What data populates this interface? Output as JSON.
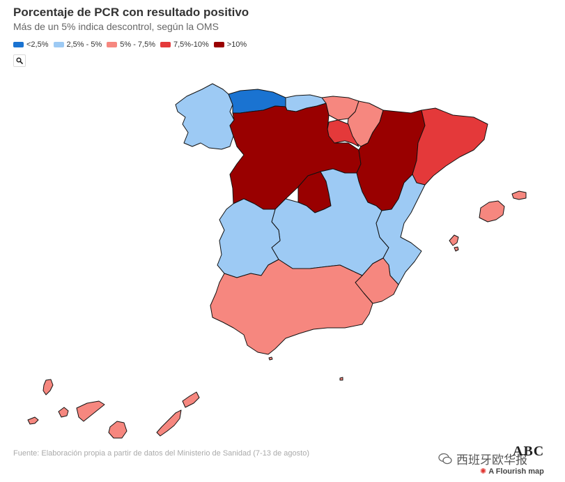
{
  "header": {
    "title": "Porcentaje de PCR con resultado positivo",
    "subtitle": "Más de un 5% indica descontrol, según la OMS"
  },
  "legend": [
    {
      "label": "<2,5%",
      "color": "#1a73d1"
    },
    {
      "label": "2,5% - 5%",
      "color": "#9dcaf4"
    },
    {
      "label": "5% - 7,5%",
      "color": "#f6877f"
    },
    {
      "label": "7,5%-10%",
      "color": "#e4393a"
    },
    {
      "label": ">10%",
      "color": "#990000"
    }
  ],
  "controls": {
    "search_icon": "search-icon"
  },
  "regions": [
    {
      "name": "Galicia",
      "category": "2,5% - 5%"
    },
    {
      "name": "Asturias",
      "category": "<2,5%"
    },
    {
      "name": "Cantabria",
      "category": "2,5% - 5%"
    },
    {
      "name": "País Vasco",
      "category": "5% - 7,5%"
    },
    {
      "name": "Navarra",
      "category": "5% - 7,5%"
    },
    {
      "name": "La Rioja",
      "category": "7,5%-10%"
    },
    {
      "name": "Cataluña",
      "category": "7,5%-10%"
    },
    {
      "name": "Castilla y León",
      "category": ">10%"
    },
    {
      "name": "Madrid",
      "category": ">10%"
    },
    {
      "name": "Aragón",
      "category": ">10%"
    },
    {
      "name": "Castilla-La Mancha",
      "category": "2,5% - 5%"
    },
    {
      "name": "Extremadura",
      "category": "2,5% - 5%"
    },
    {
      "name": "Comunidad Valenciana",
      "category": "2,5% - 5%"
    },
    {
      "name": "Andalucía",
      "category": "5% - 7,5%"
    },
    {
      "name": "Murcia",
      "category": "5% - 7,5%"
    },
    {
      "name": "Islas Baleares",
      "category": "5% - 7,5%"
    },
    {
      "name": "Canarias",
      "category": "5% - 7,5%"
    },
    {
      "name": "Ceuta",
      "category": "5% - 7,5%"
    },
    {
      "name": "Melilla",
      "category": "5% - 7,5%"
    }
  ],
  "footer": {
    "source": "Fuente: Elaboración propia a partir de datos del Ministerio de Sanidad (7-13 de agosto)",
    "brand": "ABC",
    "watermark": "西班牙欧华报",
    "flourish": "A Flourish map"
  }
}
